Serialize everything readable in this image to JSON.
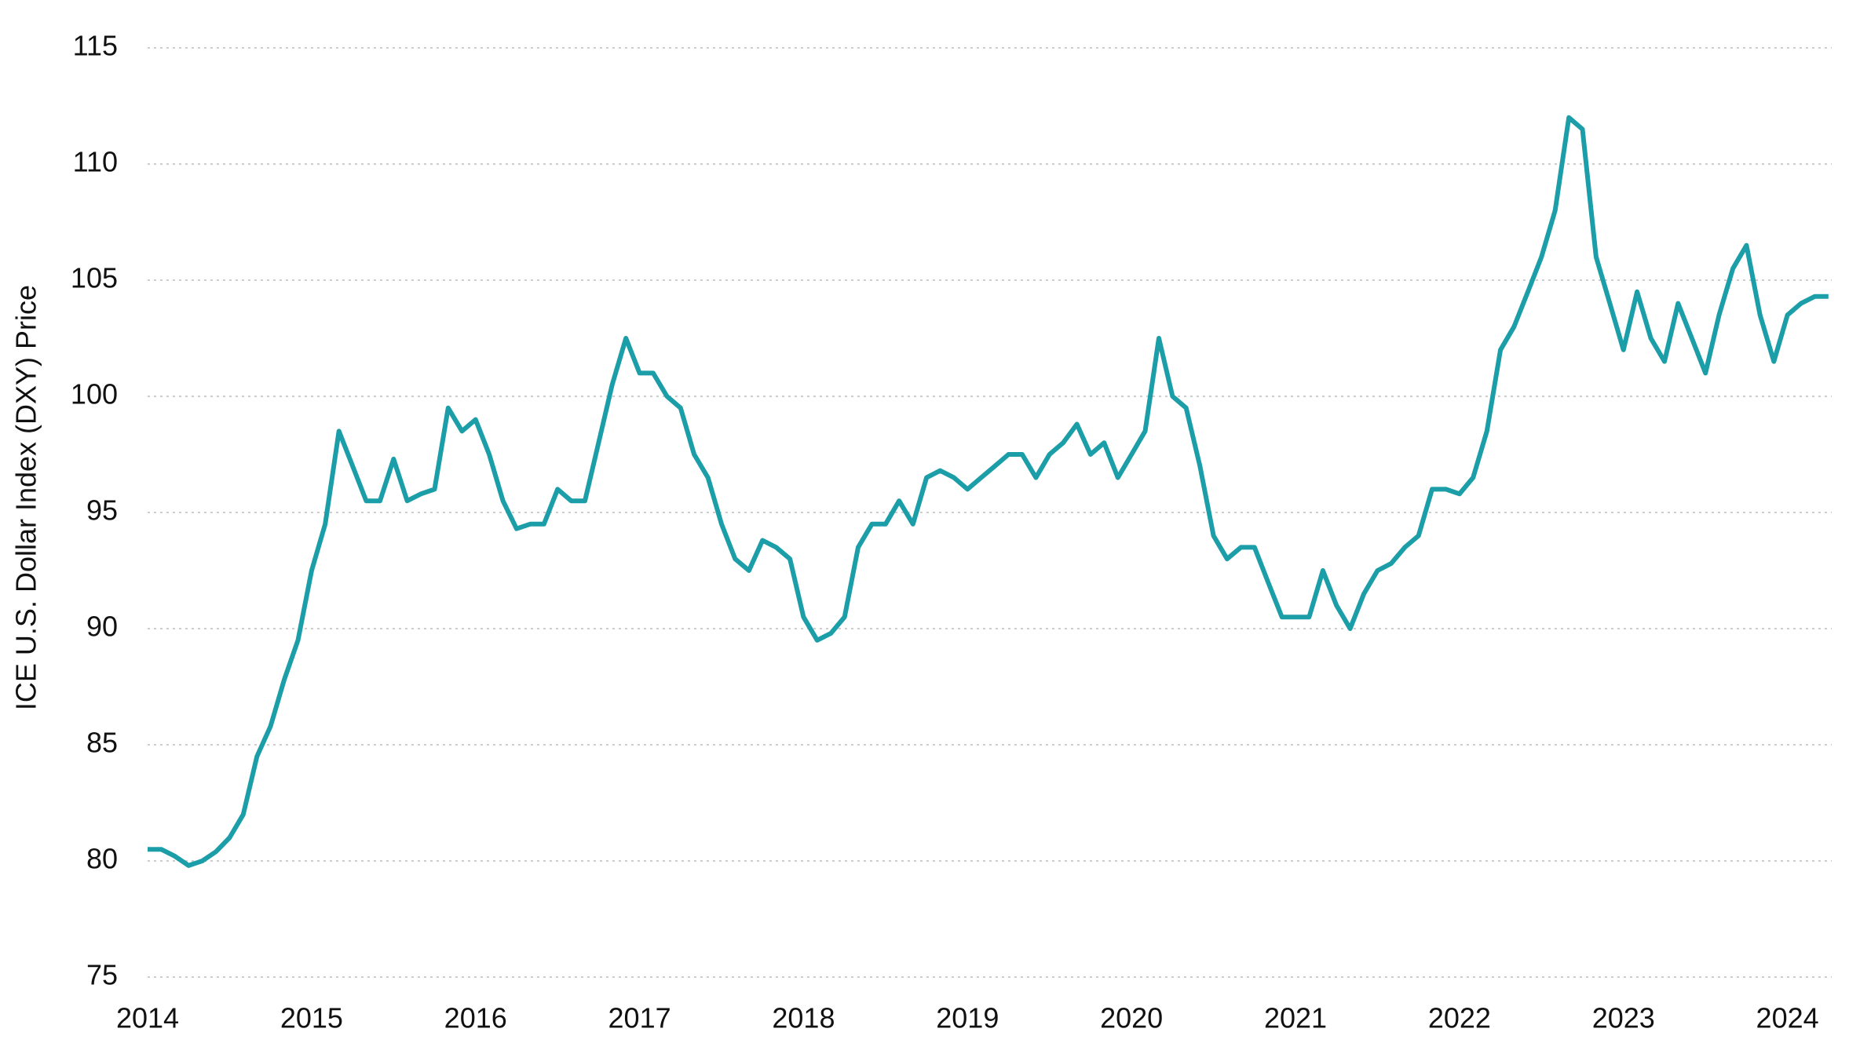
{
  "chart_data": {
    "type": "line",
    "y_label": "ICE U.S. Dollar Index (DXY) Price",
    "x": [
      2014,
      2014.083,
      2014.167,
      2014.25,
      2014.333,
      2014.417,
      2014.5,
      2014.583,
      2014.667,
      2014.75,
      2014.833,
      2014.917,
      2015,
      2015.083,
      2015.167,
      2015.25,
      2015.333,
      2015.417,
      2015.5,
      2015.583,
      2015.667,
      2015.75,
      2015.833,
      2015.917,
      2016,
      2016.083,
      2016.167,
      2016.25,
      2016.333,
      2016.417,
      2016.5,
      2016.583,
      2016.667,
      2016.75,
      2016.833,
      2016.917,
      2017,
      2017.083,
      2017.167,
      2017.25,
      2017.333,
      2017.417,
      2017.5,
      2017.583,
      2017.667,
      2017.75,
      2017.833,
      2017.917,
      2018,
      2018.083,
      2018.167,
      2018.25,
      2018.333,
      2018.417,
      2018.5,
      2018.583,
      2018.667,
      2018.75,
      2018.833,
      2018.917,
      2019,
      2019.083,
      2019.167,
      2019.25,
      2019.333,
      2019.417,
      2019.5,
      2019.583,
      2019.667,
      2019.75,
      2019.833,
      2019.917,
      2020,
      2020.083,
      2020.167,
      2020.25,
      2020.333,
      2020.417,
      2020.5,
      2020.583,
      2020.667,
      2020.75,
      2020.833,
      2020.917,
      2021,
      2021.083,
      2021.167,
      2021.25,
      2021.333,
      2021.417,
      2021.5,
      2021.583,
      2021.667,
      2021.75,
      2021.833,
      2021.917,
      2022,
      2022.083,
      2022.167,
      2022.25,
      2022.333,
      2022.417,
      2022.5,
      2022.583,
      2022.667,
      2022.75,
      2022.833,
      2022.917,
      2023,
      2023.083,
      2023.167,
      2023.25,
      2023.333,
      2023.417,
      2023.5,
      2023.583,
      2023.667,
      2023.75,
      2023.833,
      2023.917,
      2024,
      2024.083,
      2024.167,
      2024.25
    ],
    "series": [
      {
        "name": "DXY",
        "color": "#1b9ea8",
        "values": [
          80.5,
          80.5,
          80.2,
          79.8,
          80.0,
          80.4,
          81.0,
          82.0,
          84.5,
          85.8,
          87.8,
          89.5,
          92.5,
          94.5,
          98.5,
          97.0,
          95.5,
          95.5,
          97.3,
          95.5,
          95.8,
          96.0,
          99.5,
          98.5,
          99.0,
          97.5,
          95.5,
          94.3,
          94.5,
          94.5,
          96.0,
          95.5,
          95.5,
          98.0,
          100.5,
          102.5,
          101.0,
          101.0,
          100.0,
          99.5,
          97.5,
          96.5,
          94.5,
          93.0,
          92.5,
          93.8,
          93.5,
          93.0,
          90.5,
          89.5,
          89.8,
          90.5,
          93.5,
          94.5,
          94.5,
          95.5,
          94.5,
          96.5,
          96.8,
          96.5,
          96.0,
          96.5,
          97.0,
          97.5,
          97.5,
          96.5,
          97.5,
          98.0,
          98.8,
          97.5,
          98.0,
          96.5,
          97.5,
          98.5,
          102.5,
          100.0,
          99.5,
          97.0,
          94.0,
          93.0,
          93.5,
          93.5,
          92.0,
          90.5,
          90.5,
          90.5,
          92.5,
          91.0,
          90.0,
          91.5,
          92.5,
          92.8,
          93.5,
          94.0,
          96.0,
          96.0,
          95.8,
          96.5,
          98.5,
          102.0,
          103.0,
          104.5,
          106.0,
          108.0,
          112.0,
          111.5,
          106.0,
          104.0,
          102.0,
          104.5,
          102.5,
          101.5,
          104.0,
          102.5,
          101.0,
          103.5,
          105.5,
          106.5,
          103.5,
          101.5,
          103.5,
          104.0,
          104.3,
          104.3
        ]
      }
    ],
    "xlim": [
      2014,
      2024.27
    ],
    "xticks": [
      2014,
      2015,
      2016,
      2017,
      2018,
      2019,
      2020,
      2021,
      2022,
      2023,
      2024
    ],
    "ylim": [
      75,
      115
    ],
    "yticks": [
      75,
      80,
      85,
      90,
      95,
      100,
      105,
      110,
      115
    ],
    "grid": true
  }
}
